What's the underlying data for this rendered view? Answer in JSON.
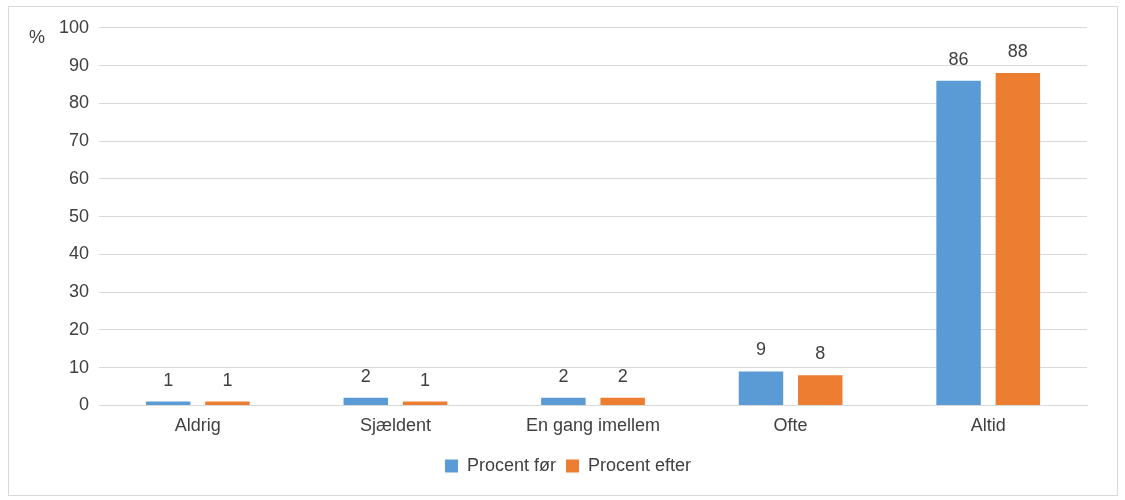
{
  "chart_data": {
    "type": "bar",
    "ylabel": "%",
    "categories": [
      "Aldrig",
      "Sjældent",
      "En gang imellem",
      "Ofte",
      "Altid"
    ],
    "series": [
      {
        "name": "Procent før",
        "color": "#5b9bd5",
        "values": [
          1,
          2,
          2,
          9,
          86
        ]
      },
      {
        "name": "Procent efter",
        "color": "#ed7d31",
        "values": [
          1,
          1,
          2,
          8,
          88
        ]
      }
    ],
    "ylim": [
      0,
      100
    ],
    "yticks": [
      0,
      10,
      20,
      30,
      40,
      50,
      60,
      70,
      80,
      90,
      100
    ],
    "grid": "y",
    "legend": "bottom",
    "data_labels": true
  }
}
